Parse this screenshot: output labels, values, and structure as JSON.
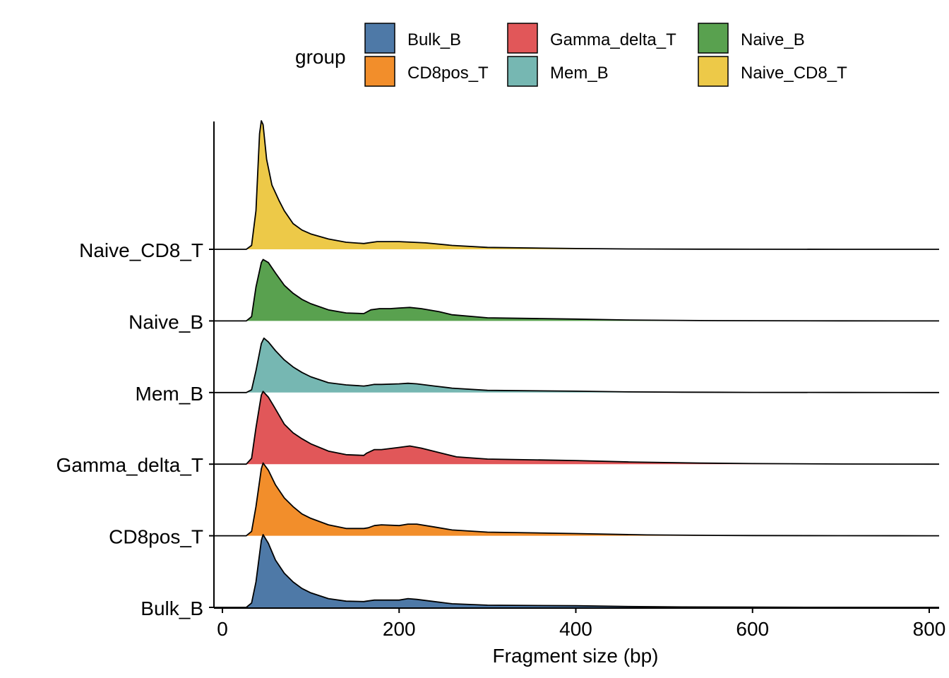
{
  "chart_data": {
    "type": "area",
    "subtype": "ridgeline",
    "title": "",
    "xlabel": "Fragment size (bp)",
    "ylabel": "",
    "xlim": [
      0,
      800
    ],
    "x_ticks": [
      0,
      200,
      400,
      600,
      800
    ],
    "grid": false,
    "legend": {
      "title": "group",
      "position": "top",
      "entries": [
        {
          "name": "Bulk_B",
          "color": "#4E79A7"
        },
        {
          "name": "CD8pos_T",
          "color": "#F28E2B"
        },
        {
          "name": "Gamma_delta_T",
          "color": "#E15759"
        },
        {
          "name": "Mem_B",
          "color": "#76B7B2"
        },
        {
          "name": "Naive_B",
          "color": "#59A14F"
        },
        {
          "name": "Naive_CD8_T",
          "color": "#EDC948"
        }
      ]
    },
    "categories": [
      "Bulk_B",
      "CD8pos_T",
      "Gamma_delta_T",
      "Mem_B",
      "Naive_B",
      "Naive_CD8_T"
    ],
    "series": [
      {
        "name": "Bulk_B",
        "color": "#4E79A7",
        "x": [
          27,
          33,
          38,
          44,
          46,
          52,
          60,
          70,
          80,
          90,
          100,
          120,
          140,
          160,
          163,
          172,
          180,
          200,
          210,
          220,
          240,
          260,
          300,
          400,
          460,
          520,
          600,
          660,
          800
        ],
        "y": [
          0,
          0.06,
          0.35,
          0.92,
          1.0,
          0.88,
          0.65,
          0.47,
          0.35,
          0.26,
          0.2,
          0.12,
          0.085,
          0.08,
          0.085,
          0.1,
          0.1,
          0.1,
          0.12,
          0.11,
          0.08,
          0.05,
          0.03,
          0.022,
          0.012,
          0.006,
          0.003,
          0.001,
          0
        ]
      },
      {
        "name": "CD8pos_T",
        "color": "#F28E2B",
        "x": [
          27,
          33,
          38,
          44,
          46,
          52,
          60,
          70,
          80,
          90,
          100,
          120,
          140,
          160,
          165,
          172,
          180,
          200,
          210,
          220,
          240,
          260,
          300,
          400,
          480,
          560,
          600,
          700,
          800
        ],
        "y": [
          0,
          0.06,
          0.4,
          0.92,
          1.0,
          0.9,
          0.7,
          0.52,
          0.4,
          0.3,
          0.24,
          0.15,
          0.1,
          0.1,
          0.11,
          0.14,
          0.15,
          0.14,
          0.16,
          0.16,
          0.12,
          0.08,
          0.05,
          0.03,
          0.012,
          0.005,
          0.003,
          0.001,
          0
        ]
      },
      {
        "name": "Gamma_delta_T",
        "color": "#E15759",
        "x": [
          27,
          33,
          38,
          44,
          46,
          52,
          58,
          70,
          80,
          90,
          100,
          120,
          140,
          160,
          163,
          172,
          180,
          200,
          212,
          225,
          245,
          265,
          300,
          400,
          460,
          540,
          600,
          700,
          800
        ],
        "y": [
          0,
          0.08,
          0.5,
          0.95,
          1.0,
          0.92,
          0.8,
          0.55,
          0.43,
          0.35,
          0.28,
          0.18,
          0.13,
          0.12,
          0.15,
          0.2,
          0.2,
          0.23,
          0.25,
          0.22,
          0.16,
          0.1,
          0.07,
          0.05,
          0.03,
          0.015,
          0.008,
          0.002,
          0
        ]
      },
      {
        "name": "Mem_B",
        "color": "#76B7B2",
        "x": [
          27,
          33,
          38,
          44,
          47,
          52,
          60,
          70,
          80,
          90,
          100,
          120,
          140,
          160,
          165,
          172,
          180,
          200,
          210,
          220,
          240,
          260,
          300,
          400,
          460,
          520,
          600,
          700,
          800
        ],
        "y": [
          0,
          0.05,
          0.4,
          0.9,
          1.0,
          0.93,
          0.77,
          0.6,
          0.47,
          0.37,
          0.29,
          0.18,
          0.14,
          0.12,
          0.13,
          0.15,
          0.15,
          0.16,
          0.17,
          0.16,
          0.12,
          0.08,
          0.04,
          0.025,
          0.012,
          0.006,
          0.003,
          0.001,
          0
        ]
      },
      {
        "name": "Naive_B",
        "color": "#59A14F",
        "x": [
          27,
          33,
          38,
          44,
          46,
          52,
          60,
          70,
          80,
          90,
          100,
          120,
          140,
          160,
          168,
          178,
          190,
          200,
          212,
          225,
          245,
          260,
          300,
          400,
          460,
          540,
          600,
          700,
          800
        ],
        "y": [
          0,
          0.07,
          0.55,
          0.95,
          1.0,
          0.95,
          0.78,
          0.58,
          0.45,
          0.35,
          0.28,
          0.18,
          0.13,
          0.12,
          0.18,
          0.2,
          0.2,
          0.21,
          0.22,
          0.2,
          0.15,
          0.1,
          0.05,
          0.03,
          0.015,
          0.006,
          0.003,
          0.001,
          0
        ]
      },
      {
        "name": "Naive_CD8_T",
        "color": "#EDC948",
        "x": [
          27,
          33,
          38,
          42,
          44,
          46,
          50,
          56,
          64,
          70,
          80,
          90,
          100,
          120,
          140,
          160,
          175,
          200,
          230,
          260,
          300,
          400,
          460,
          540,
          600,
          700,
          800
        ],
        "y": [
          0,
          0.03,
          0.3,
          0.9,
          1.0,
          0.97,
          0.7,
          0.5,
          0.38,
          0.3,
          0.2,
          0.15,
          0.12,
          0.08,
          0.055,
          0.045,
          0.06,
          0.06,
          0.05,
          0.03,
          0.015,
          0.006,
          0.003,
          0.001,
          0.0005,
          0.0002,
          0
        ]
      }
    ]
  }
}
